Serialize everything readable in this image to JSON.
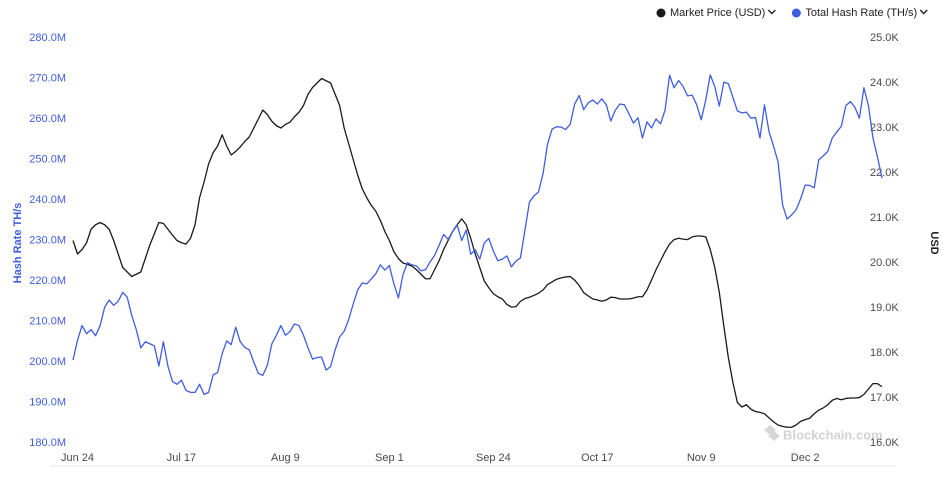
{
  "chart_data": {
    "type": "line",
    "y_label": "Hash Rate TH/s",
    "y2_label": "USD",
    "watermark": "Blockchain.com",
    "categories": [
      null,
      "Jun 24",
      null,
      null,
      null,
      null,
      null,
      null,
      null,
      null,
      null,
      null,
      null,
      null,
      null,
      null,
      null,
      null,
      null,
      null,
      null,
      null,
      null,
      null,
      "Jul 17",
      null,
      null,
      null,
      null,
      null,
      null,
      null,
      null,
      null,
      null,
      null,
      null,
      null,
      null,
      null,
      null,
      null,
      null,
      null,
      null,
      null,
      null,
      "Aug 9",
      null,
      null,
      null,
      null,
      null,
      null,
      null,
      null,
      null,
      null,
      null,
      null,
      null,
      null,
      null,
      null,
      null,
      null,
      null,
      null,
      null,
      null,
      "Sep 1",
      null,
      null,
      null,
      null,
      null,
      null,
      null,
      null,
      null,
      null,
      null,
      null,
      null,
      null,
      null,
      null,
      null,
      null,
      null,
      null,
      null,
      null,
      "Sep 24",
      null,
      null,
      null,
      null,
      null,
      null,
      null,
      null,
      null,
      null,
      null,
      null,
      null,
      null,
      null,
      null,
      null,
      null,
      null,
      null,
      null,
      null,
      "Oct 17",
      null,
      null,
      null,
      null,
      null,
      null,
      null,
      null,
      null,
      null,
      null,
      null,
      null,
      null,
      null,
      null,
      null,
      null,
      null,
      null,
      null,
      null,
      "Nov 9",
      null,
      null,
      null,
      null,
      null,
      null,
      null,
      null,
      null,
      null,
      null,
      null,
      null,
      null,
      null,
      null,
      null,
      null,
      null,
      null,
      null,
      null,
      "Dec 2",
      null,
      null,
      null,
      null,
      null,
      null,
      null,
      null,
      null,
      null,
      null,
      null,
      null,
      null,
      null,
      null,
      null
    ],
    "series": [
      {
        "name": "Market Price (USD)",
        "color": "#1a1a1a",
        "axis": "y2",
        "values": [
          20500,
          20200,
          20300,
          20450,
          20750,
          20850,
          20900,
          20850,
          20750,
          20500,
          20200,
          19900,
          19800,
          19700,
          19750,
          19800,
          20100,
          20400,
          20650,
          20900,
          20880,
          20750,
          20620,
          20500,
          20450,
          20420,
          20550,
          20850,
          21450,
          21800,
          22200,
          22450,
          22600,
          22850,
          22600,
          22400,
          22480,
          22580,
          22700,
          22800,
          23000,
          23200,
          23400,
          23300,
          23150,
          23050,
          23000,
          23080,
          23130,
          23250,
          23350,
          23500,
          23750,
          23900,
          24000,
          24100,
          24050,
          24000,
          23750,
          23500,
          23000,
          22650,
          22300,
          21950,
          21650,
          21450,
          21280,
          21150,
          20950,
          20700,
          20500,
          20250,
          20100,
          20000,
          19970,
          19930,
          19850,
          19750,
          19650,
          19650,
          19850,
          20050,
          20300,
          20500,
          20700,
          20850,
          20980,
          20850,
          20550,
          20200,
          19900,
          19600,
          19450,
          19320,
          19250,
          19200,
          19080,
          19020,
          19030,
          19150,
          19210,
          19240,
          19280,
          19330,
          19400,
          19520,
          19580,
          19640,
          19670,
          19690,
          19700,
          19620,
          19500,
          19340,
          19270,
          19200,
          19180,
          19150,
          19180,
          19240,
          19230,
          19200,
          19200,
          19200,
          19220,
          19250,
          19250,
          19400,
          19620,
          19850,
          20050,
          20250,
          20420,
          20520,
          20550,
          20530,
          20520,
          20580,
          20600,
          20600,
          20580,
          20300,
          19900,
          19350,
          18600,
          17900,
          17350,
          16900,
          16800,
          16850,
          16750,
          16700,
          16680,
          16650,
          16560,
          16470,
          16400,
          16370,
          16350,
          16350,
          16400,
          16480,
          16520,
          16550,
          16650,
          16730,
          16780,
          16850,
          16950,
          16990,
          16960,
          16990,
          17000,
          17000,
          17010,
          17080,
          17200,
          17320,
          17320,
          17250
        ]
      },
      {
        "name": "Total Hash Rate (TH/s)",
        "color": "#3f5de0",
        "axis": "y",
        "values": [
          200500000,
          205400000,
          209000000,
          207000000,
          208000000,
          206500000,
          209000000,
          213500000,
          215300000,
          214000000,
          215000000,
          217200000,
          216000000,
          211500000,
          208000000,
          203500000,
          205000000,
          204500000,
          204000000,
          199000000,
          205000000,
          199000000,
          195200000,
          194500000,
          195500000,
          193000000,
          192500000,
          192500000,
          194500000,
          192000000,
          192500000,
          196800000,
          197400000,
          202000000,
          205200000,
          204300000,
          208600000,
          205000000,
          203600000,
          203000000,
          200000000,
          197200000,
          196700000,
          199200000,
          204500000,
          206600000,
          209000000,
          206600000,
          207500000,
          209400000,
          209000000,
          206600000,
          203500000,
          200700000,
          201100000,
          201200000,
          198000000,
          198900000,
          203000000,
          206200000,
          207600000,
          210500000,
          214300000,
          217800000,
          219500000,
          219300000,
          220500000,
          221800000,
          224000000,
          222700000,
          223800000,
          219300000,
          215800000,
          221500000,
          224500000,
          224000000,
          223700000,
          222500000,
          222800000,
          224700000,
          226300000,
          228800000,
          231500000,
          230300000,
          232200000,
          233800000,
          230000000,
          232600000,
          226600000,
          227700000,
          225400000,
          229400000,
          230500000,
          227400000,
          225000000,
          225400000,
          226200000,
          223500000,
          224900000,
          225700000,
          232600000,
          239500000,
          241000000,
          242000000,
          246500000,
          253800000,
          257500000,
          258100000,
          258000000,
          257400000,
          258700000,
          263700000,
          265800000,
          262300000,
          264000000,
          264700000,
          263700000,
          265000000,
          263500000,
          259500000,
          262200000,
          263700000,
          263500000,
          261300000,
          259000000,
          260300000,
          255300000,
          259300000,
          257800000,
          260000000,
          258800000,
          262200000,
          270800000,
          267700000,
          269500000,
          268000000,
          265700000,
          265900000,
          263500000,
          259800000,
          264700000,
          270900000,
          268000000,
          263200000,
          269100000,
          268700000,
          265400000,
          262000000,
          261500000,
          261700000,
          260200000,
          260400000,
          255300000,
          263500000,
          256900000,
          253300000,
          249400000,
          238800000,
          235300000,
          236300000,
          237600000,
          240300000,
          243700000,
          243600000,
          243000000,
          249900000,
          250900000,
          252000000,
          255300000,
          256800000,
          258200000,
          263300000,
          264300000,
          262900000,
          260200000,
          267700000,
          263300000,
          255300000,
          250600000,
          245400000
        ]
      }
    ],
    "ylim": [
      180000000,
      280000000
    ],
    "yticks": [
      {
        "value": 180000000,
        "label": "180.0M"
      },
      {
        "value": 190000000,
        "label": "190.0M"
      },
      {
        "value": 200000000,
        "label": "200.0M"
      },
      {
        "value": 210000000,
        "label": "210.0M"
      },
      {
        "value": 220000000,
        "label": "220.0M"
      },
      {
        "value": 230000000,
        "label": "230.0M"
      },
      {
        "value": 240000000,
        "label": "240.0M"
      },
      {
        "value": 250000000,
        "label": "250.0M"
      },
      {
        "value": 260000000,
        "label": "260.0M"
      },
      {
        "value": 270000000,
        "label": "270.0M"
      },
      {
        "value": 280000000,
        "label": "280.0M"
      }
    ],
    "y2lim": [
      16000,
      25000
    ],
    "y2ticks": [
      {
        "value": 16000,
        "label": "16.0K"
      },
      {
        "value": 17000,
        "label": "17.0K"
      },
      {
        "value": 18000,
        "label": "18.0K"
      },
      {
        "value": 19000,
        "label": "19.0K"
      },
      {
        "value": 20000,
        "label": "20.0K"
      },
      {
        "value": 21000,
        "label": "21.0K"
      },
      {
        "value": 22000,
        "label": "22.0K"
      },
      {
        "value": 23000,
        "label": "23.0K"
      },
      {
        "value": 24000,
        "label": "24.0K"
      },
      {
        "value": 25000,
        "label": "25.0K"
      }
    ],
    "grid": false
  }
}
